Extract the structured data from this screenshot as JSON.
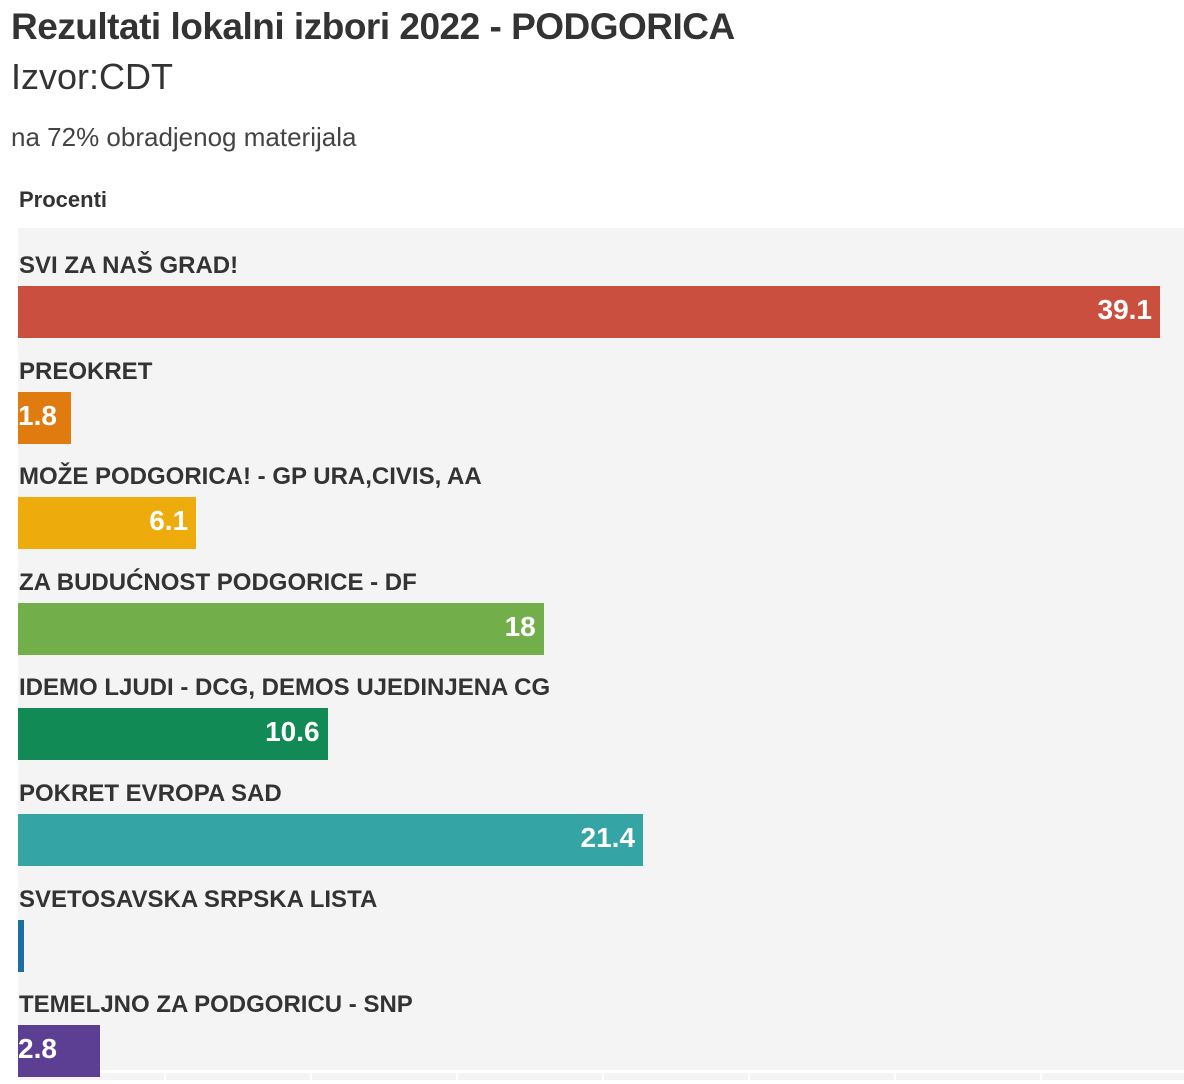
{
  "header": {
    "title": "Rezultati lokalni izbori 2022 - PODGORICA",
    "subtitle": "Izvor:CDT",
    "description": "na 72% obradjenog materijala"
  },
  "chart_data": {
    "type": "bar",
    "orientation": "horizontal",
    "title": "Rezultati lokalni izbori 2022 - PODGORICA",
    "xlabel": "Procenti",
    "xlim": [
      0,
      40
    ],
    "grid": true,
    "categories": [
      "SVI ZA NAŠ GRAD!",
      "PREOKRET",
      "MOŽE PODGORICA! - GP URA,CIVIS, AA",
      "ZA BUDUĆNOST PODGORICE - DF",
      "IDEMO LJUDI - DCG, DEMOS UJEDINJENA CG",
      "POKRET EVROPA SAD",
      "SVETOSAVSKA SRPSKA LISTA",
      "TEMELJNO ZA PODGORICU - SNP"
    ],
    "values": [
      39.1,
      1.8,
      6.1,
      18,
      10.6,
      21.4,
      0.2,
      2.8
    ],
    "labels": [
      "39.1",
      "1.8",
      "6.1",
      "18",
      "10.6",
      "21.4",
      "",
      "2.8"
    ],
    "colors": [
      "#cb4f3e",
      "#e07b0f",
      "#edac0c",
      "#72ae4a",
      "#128a55",
      "#35a4a4",
      "#1d6fa0",
      "#5c3f92"
    ]
  }
}
